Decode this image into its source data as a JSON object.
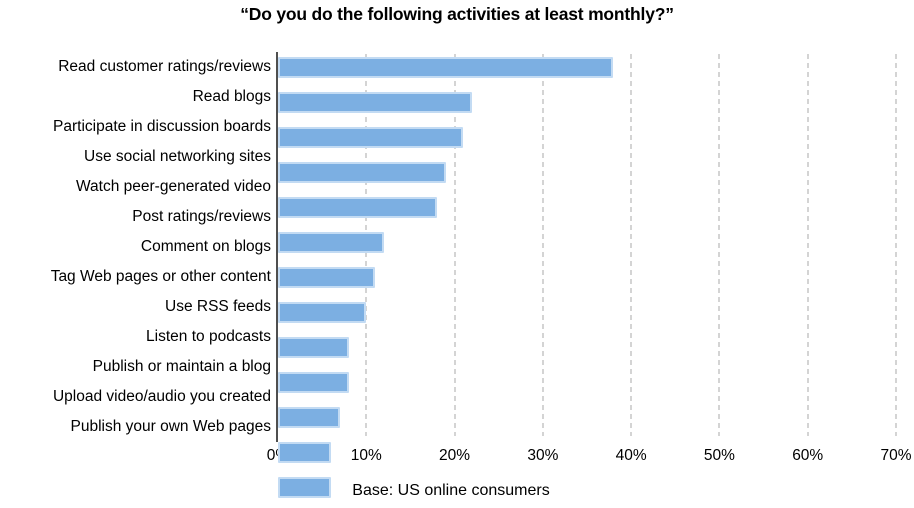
{
  "title": "“Do you do the following activities at least monthly?”",
  "caption": "Base: US online consumers",
  "chart_data": {
    "type": "bar",
    "orientation": "horizontal",
    "title": "“Do you do the following activities at least monthly?”",
    "categories": [
      "Read customer ratings/reviews",
      "Read blogs",
      "Participate in discussion boards",
      "Use social networking sites",
      "Watch peer-generated video",
      "Post ratings/reviews",
      "Comment on blogs",
      "Tag Web pages or other content",
      "Use RSS feeds",
      "Listen to podcasts",
      "Publish or maintain a blog",
      "Upload video/audio you created",
      "Publish your own Web pages"
    ],
    "values": [
      38,
      22,
      21,
      19,
      18,
      12,
      11,
      10,
      8,
      8,
      7,
      6,
      6
    ],
    "unit": "%",
    "xlabel": "Base: US online consumers",
    "ylabel": "",
    "xlim": [
      0,
      70
    ],
    "x_tick_labels": [
      "0%",
      "10%",
      "20%",
      "30%",
      "40%",
      "50%",
      "60%",
      "70%"
    ],
    "grid": "vertical-dashed",
    "legend": "none",
    "colors": {
      "bar_fill": "#7cafe2",
      "bar_border": "#c3dbf3",
      "axis_line": "#4f4f4f",
      "gridline": "#d4d4d4",
      "text": "#000000",
      "background": "#ffffff"
    }
  }
}
